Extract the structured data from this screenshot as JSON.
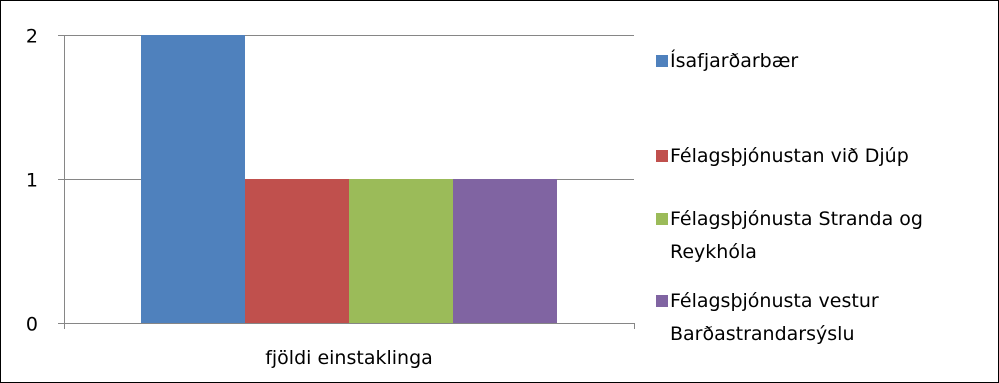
{
  "chart_data": {
    "type": "bar",
    "categories": [
      "fjöldi einstaklinga"
    ],
    "series": [
      {
        "name": "Ísafjarðarbær",
        "values": [
          2
        ],
        "color": "#4f81bd"
      },
      {
        "name": "Félagsþjónustan við Djúp",
        "values": [
          1
        ],
        "color": "#c0504d"
      },
      {
        "name": "Félagsþjónusta Stranda og Reykhóla",
        "values": [
          1
        ],
        "color": "#9bbb59"
      },
      {
        "name": "Félagsþjónusta vestur Barðastrandarsýslu",
        "values": [
          1
        ],
        "color": "#8064a2"
      }
    ],
    "ylim": [
      0,
      2
    ],
    "yticks": [
      0,
      1,
      2
    ],
    "grid": true,
    "legend_position": "right",
    "title": "",
    "xlabel": "",
    "ylabel": ""
  }
}
